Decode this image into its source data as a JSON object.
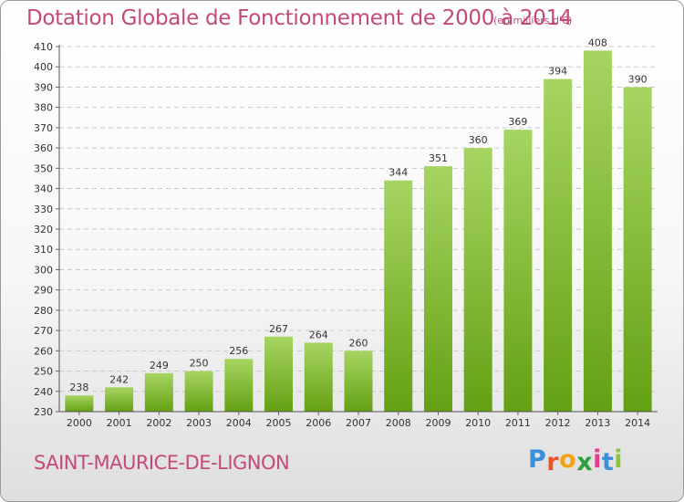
{
  "title": "Dotation Globale de Fonctionnement de 2000 à 2014",
  "unit_note": "(en milliers d'€)",
  "commune": "SAINT-MAURICE-DE-LIGNON",
  "brand": {
    "letters": [
      "P",
      "r",
      "o",
      "x",
      "i",
      "t",
      "i"
    ],
    "colors": [
      "#3a8fd8",
      "#e8542a",
      "#f2a414",
      "#2f9f3f",
      "#e33e8f",
      "#3a8fd8",
      "#8cc63f"
    ]
  },
  "colors": {
    "bar_light": "#a6d562",
    "bar_dark": "#64a013",
    "grid": "#c9c9c9",
    "text": "#c3497a"
  },
  "chart_data": {
    "type": "bar",
    "title": "Dotation Globale de Fonctionnement de 2000 à 2014",
    "subtitle": "(en milliers d'€)",
    "categories": [
      "2000",
      "2001",
      "2002",
      "2003",
      "2004",
      "2005",
      "2006",
      "2007",
      "2008",
      "2009",
      "2010",
      "2011",
      "2012",
      "2013",
      "2014"
    ],
    "values": [
      238,
      242,
      249,
      250,
      256,
      267,
      264,
      260,
      344,
      351,
      360,
      369,
      394,
      408,
      390
    ],
    "ylim": [
      230,
      410
    ],
    "yticks": [
      230,
      240,
      250,
      260,
      270,
      280,
      290,
      300,
      310,
      320,
      330,
      340,
      350,
      360,
      370,
      380,
      390,
      400,
      410
    ],
    "grid": true,
    "data_labels": true,
    "legend": "none"
  }
}
